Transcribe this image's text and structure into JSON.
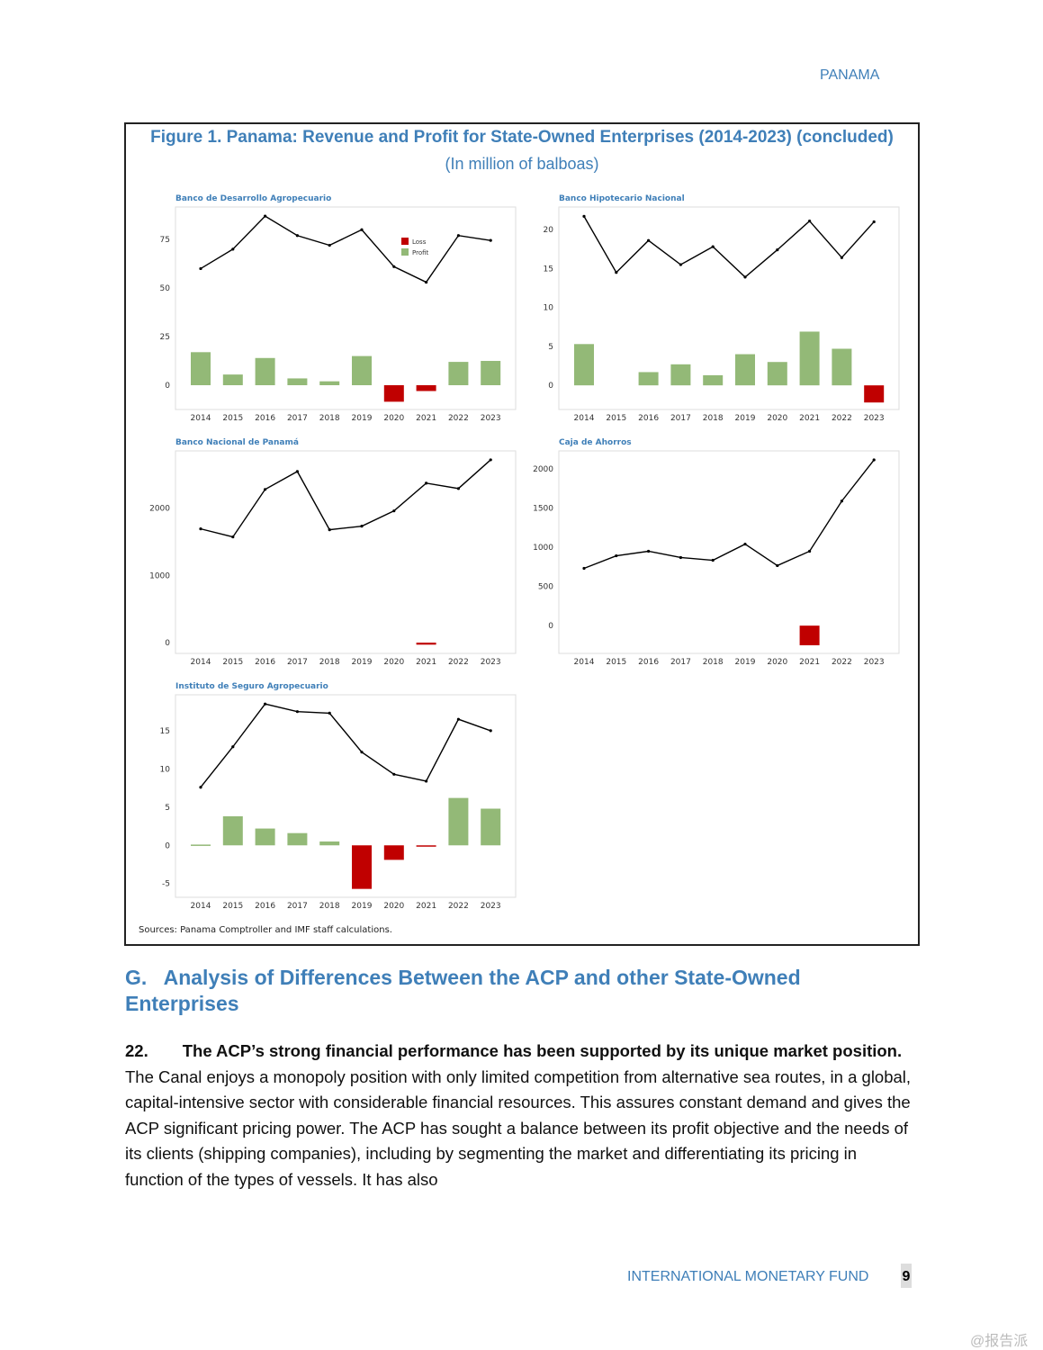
{
  "header": {
    "running_head": "PANAMA"
  },
  "figure": {
    "title": "Figure 1. Panama: Revenue and Profit for State-Owned Enterprises (2014-2023) (concluded)",
    "subtitle": "(In million of balboas)",
    "sources": "Sources: Panama Comptroller and IMF staff calculations.",
    "colors": {
      "loss": "#c00000",
      "profit": "#93b977",
      "line": "#000000"
    }
  },
  "chart_data": [
    {
      "type": "bar+line",
      "title": "Banco de Desarrollo Agropecuario",
      "categories": [
        "2014",
        "2015",
        "2016",
        "2017",
        "2018",
        "2019",
        "2020",
        "2021",
        "2022",
        "2023"
      ],
      "yticks": [
        "0",
        "25",
        "50",
        "75"
      ],
      "ylim": [
        -12.5,
        91.7
      ],
      "legend": {
        "position": "top-right",
        "items": [
          "Loss",
          "Profit"
        ]
      },
      "line": [
        60,
        70,
        87,
        77,
        72,
        80,
        61,
        53,
        77,
        74.5
      ],
      "bars": [
        17,
        5.5,
        14,
        3.5,
        2,
        15,
        -8.5,
        -3,
        12,
        12.5
      ]
    },
    {
      "type": "bar+line",
      "title": "Banco Hipotecario Nacional",
      "categories": [
        "2014",
        "2015",
        "2016",
        "2017",
        "2018",
        "2019",
        "2020",
        "2021",
        "2022",
        "2023"
      ],
      "yticks": [
        "0",
        "5",
        "10",
        "15",
        "20"
      ],
      "ylim": [
        -3.1,
        22.9
      ],
      "line": [
        21.7,
        14.5,
        18.6,
        15.5,
        17.8,
        13.9,
        17.4,
        21.1,
        16.4,
        21.0
      ],
      "bars": [
        5.3,
        0,
        1.7,
        2.7,
        1.3,
        4.0,
        3.0,
        6.9,
        4.7,
        -2.2
      ]
    },
    {
      "type": "bar+line",
      "title": "Banco Nacional de Panamá",
      "categories": [
        "2014",
        "2015",
        "2016",
        "2017",
        "2018",
        "2019",
        "2020",
        "2021",
        "2022",
        "2023"
      ],
      "yticks": [
        "0",
        "1000",
        "2000"
      ],
      "ylim": [
        -160,
        2853
      ],
      "line": [
        1693,
        1573,
        2280,
        2547,
        1680,
        1733,
        1960,
        2373,
        2293,
        2720
      ],
      "bars": [
        0,
        0,
        0,
        0,
        0,
        0,
        0,
        -30,
        0,
        0
      ]
    },
    {
      "type": "bar+line",
      "title": "Caja de Ahorros",
      "categories": [
        "2014",
        "2015",
        "2016",
        "2017",
        "2018",
        "2019",
        "2020",
        "2021",
        "2022",
        "2023"
      ],
      "yticks": [
        "0",
        "500",
        "1000",
        "1500",
        "2000"
      ],
      "ylim": [
        -354,
        2229
      ],
      "line": [
        731,
        891,
        949,
        869,
        834,
        1040,
        766,
        949,
        1589,
        2114
      ],
      "bars": [
        0,
        0,
        0,
        0,
        0,
        0,
        0,
        -250,
        0,
        0
      ]
    },
    {
      "type": "bar+line",
      "title": "Instituto de Seguro Agropecuario",
      "categories": [
        "2014",
        "2015",
        "2016",
        "2017",
        "2018",
        "2019",
        "2020",
        "2021",
        "2022",
        "2023"
      ],
      "yticks": [
        "-5",
        "0",
        "5",
        "10",
        "15"
      ],
      "ylim": [
        -6.8,
        19.7
      ],
      "line": [
        7.6,
        12.9,
        18.5,
        17.5,
        17.3,
        12.2,
        9.3,
        8.4,
        16.5,
        15.0
      ],
      "bars": [
        0.1,
        3.8,
        2.2,
        1.6,
        0.5,
        -5.7,
        -1.9,
        -0.1,
        6.2,
        4.8
      ]
    }
  ],
  "section": {
    "title": "G.   Analysis of Differences Between the ACP and other State-Owned Enterprises"
  },
  "paragraph": {
    "number": "22.",
    "lead": "The ACP’s strong financial performance has been supported by its unique market position.",
    "body": " The Canal enjoys a monopoly position with only limited competition from alternative sea routes, in a global, capital-intensive sector with considerable financial resources. This assures constant demand and gives the ACP significant pricing power. The ACP has sought a balance between its profit objective and the needs of its clients (shipping companies), including by segmenting the market and differentiating its pricing in function of the types of vessels. It has also"
  },
  "footer": {
    "org": "INTERNATIONAL MONETARY FUND",
    "page": "9"
  },
  "watermark": "@报告派"
}
